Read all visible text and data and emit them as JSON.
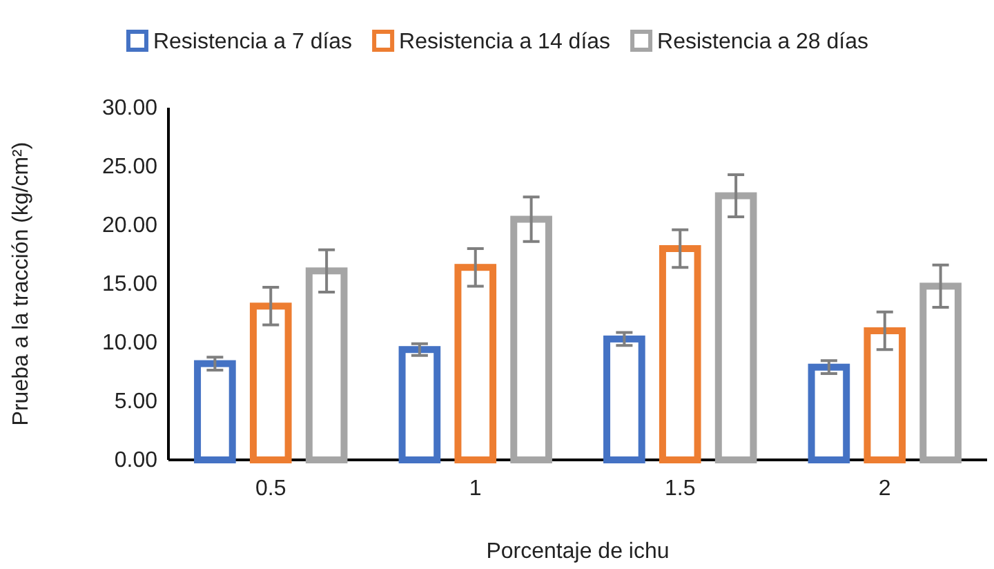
{
  "chart_data": {
    "type": "bar",
    "xlabel": "Porcentaje de ichu",
    "ylabel": "Prueba a la tracción (kg/cm²)",
    "categories": [
      "0.5",
      "1",
      "1.5",
      "2"
    ],
    "series": [
      {
        "name": "Resistencia a 7 días",
        "color": "#4472c4",
        "values": [
          8.2,
          9.4,
          10.3,
          7.9
        ],
        "errors": [
          0.55,
          0.5,
          0.55,
          0.55
        ]
      },
      {
        "name": "Resistencia a 14 días",
        "color": "#ed7d31",
        "values": [
          13.1,
          16.4,
          18.0,
          11.0
        ],
        "errors": [
          1.6,
          1.6,
          1.6,
          1.6
        ]
      },
      {
        "name": "Resistencia a 28 días",
        "color": "#a5a5a5",
        "values": [
          16.1,
          20.5,
          22.5,
          14.8
        ],
        "errors": [
          1.8,
          1.9,
          1.8,
          1.8
        ]
      }
    ],
    "ylim": [
      0,
      30
    ],
    "yticks": [
      {
        "value": 0,
        "label": "0.00"
      },
      {
        "value": 5,
        "label": "5.00"
      },
      {
        "value": 10,
        "label": "10.00"
      },
      {
        "value": 15,
        "label": "15.00"
      },
      {
        "value": 20,
        "label": "20.00"
      },
      {
        "value": 25,
        "label": "25.00"
      },
      {
        "value": 30,
        "label": "30.00"
      }
    ],
    "grid": false,
    "legend": "top"
  }
}
